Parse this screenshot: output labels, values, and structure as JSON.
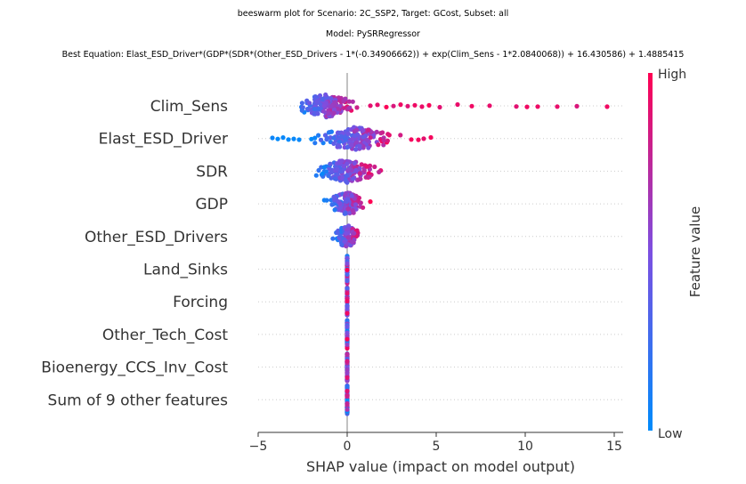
{
  "titles": {
    "line1": "beeswarm plot for Scenario: 2C_SSP2, Target: GCost, Subset: all",
    "line2": "Model: PySRRegressor",
    "line3": "Best Equation: Elast_ESD_Driver*(GDP*(SDR*(Other_ESD_Drivers - 1*(-0.34906662)) + exp(Clim_Sens - 1*2.0840068)) + 16.430586) + 1.4885415"
  },
  "chart_data": {
    "type": "scatter",
    "subtype": "beeswarm",
    "xlabel": "SHAP value (impact on model output)",
    "xlim": [
      -5,
      15.5
    ],
    "xticks": [
      -5,
      0,
      5,
      10,
      15
    ],
    "zero_line": 0,
    "grid": "dotted horizontal row guides",
    "features": [
      {
        "name": "Clim_Sens",
        "min": -3.4,
        "max": 14.6,
        "dense_min": -3.4,
        "dense_max": 1.0,
        "sparse": [
          1.3,
          1.7,
          2.2,
          2.6,
          3.0,
          3.4,
          3.8,
          4.2,
          4.6,
          5.2,
          6.2,
          7.0,
          8.0,
          9.5,
          10.1,
          10.7,
          11.8,
          12.9,
          14.6
        ],
        "n": 150
      },
      {
        "name": "Elast_ESD_Driver",
        "min": -4.2,
        "max": 4.7,
        "dense_min": -2.4,
        "dense_max": 3.3,
        "sparse": [
          -4.2,
          -3.9,
          -3.6,
          -3.3,
          -3.0,
          -2.7,
          3.6,
          4.0,
          4.3,
          4.7
        ],
        "n": 160
      },
      {
        "name": "SDR",
        "min": -2.3,
        "max": 2.2,
        "dense_min": -2.3,
        "dense_max": 2.2,
        "sparse": [],
        "n": 140
      },
      {
        "name": "GDP",
        "min": -1.5,
        "max": 1.5,
        "dense_min": -1.5,
        "dense_max": 1.5,
        "sparse": [],
        "n": 120
      },
      {
        "name": "Other_ESD_Drivers",
        "min": -0.9,
        "max": 0.9,
        "dense_min": -0.9,
        "dense_max": 0.9,
        "sparse": [],
        "n": 100
      },
      {
        "name": "Land_Sinks",
        "min": 0,
        "max": 0,
        "dense_min": 0,
        "dense_max": 0,
        "sparse": [],
        "n": 60
      },
      {
        "name": "Forcing",
        "min": 0,
        "max": 0,
        "dense_min": 0,
        "dense_max": 0,
        "sparse": [],
        "n": 60
      },
      {
        "name": "Other_Tech_Cost",
        "min": 0,
        "max": 0,
        "dense_min": 0,
        "dense_max": 0,
        "sparse": [],
        "n": 60
      },
      {
        "name": "Bioenergy_CCS_Inv_Cost",
        "min": 0,
        "max": 0,
        "dense_min": 0,
        "dense_max": 0,
        "sparse": [],
        "n": 60
      },
      {
        "name": "Sum of 9 other features",
        "min": 0,
        "max": 0,
        "dense_min": 0,
        "dense_max": 0,
        "sparse": [],
        "n": 60
      }
    ],
    "colorbar": {
      "label": "Feature value",
      "high_label": "High",
      "low_label": "Low",
      "low_color": "#008bfb",
      "high_color": "#ff0052"
    }
  }
}
